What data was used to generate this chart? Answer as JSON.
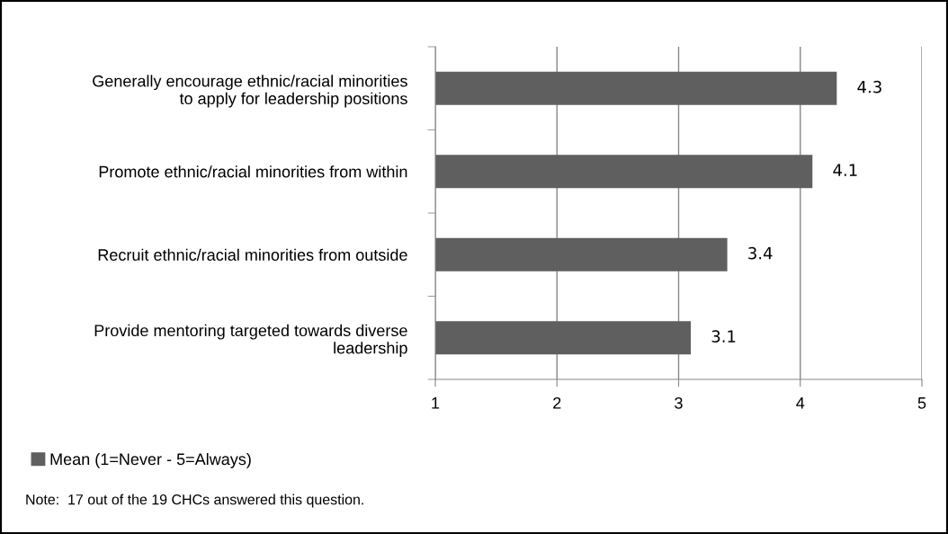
{
  "chart_data": {
    "type": "bar",
    "orientation": "horizontal",
    "categories": [
      "Generally encourage ethnic/racial minorities\nto apply for leadership positions",
      "Promote ethnic/racial minorities from within",
      "Recruit ethnic/racial minorities from outside",
      "Provide mentoring targeted towards diverse\nleadership"
    ],
    "series": [
      {
        "name": "Mean (1=Never - 5=Always)",
        "color": "#5f5f5f",
        "values": [
          4.3,
          4.1,
          3.4,
          3.1
        ]
      }
    ],
    "xlim": [
      1,
      5
    ],
    "xticks": [
      1,
      2,
      3,
      4,
      5
    ],
    "grid": "x",
    "data_labels": true,
    "legend": "bottom left",
    "annotations": [
      "Note:  17 out of the 19 CHCs answered this question."
    ]
  }
}
